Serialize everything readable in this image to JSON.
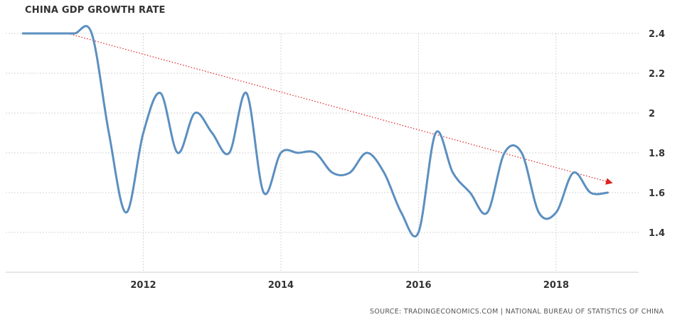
{
  "chart_data": {
    "type": "line",
    "title": "CHINA GDP GROWTH RATE",
    "source": "SOURCE: TRADINGECONOMICS.COM | NATIONAL BUREAU OF STATISTICS OF CHINA",
    "xlim": [
      2010.0,
      2019.2
    ],
    "ylim": [
      1.2,
      2.4
    ],
    "x_ticks": [
      2012,
      2014,
      2016,
      2018
    ],
    "y_ticks": [
      1.4,
      1.6,
      1.8,
      2,
      2.2,
      2.4
    ],
    "y_tick_labels": [
      "1.4",
      "1.6",
      "1.8",
      "2",
      "2.2",
      "2.4"
    ],
    "grid": true,
    "series": [
      {
        "color": "#5b8fc0",
        "x": [
          2010.25,
          2010.5,
          2010.75,
          2011.0,
          2011.25,
          2011.5,
          2011.75,
          2012.0,
          2012.25,
          2012.5,
          2012.75,
          2013.0,
          2013.25,
          2013.5,
          2013.75,
          2014.0,
          2014.25,
          2014.5,
          2014.75,
          2015.0,
          2015.25,
          2015.5,
          2015.75,
          2016.0,
          2016.25,
          2016.5,
          2016.75,
          2017.0,
          2017.25,
          2017.5,
          2017.75,
          2018.0,
          2018.25,
          2018.5,
          2018.75
        ],
        "values": [
          2.4,
          2.4,
          2.4,
          2.4,
          2.4,
          1.9,
          1.5,
          1.9,
          2.1,
          1.8,
          2.0,
          1.9,
          1.8,
          2.1,
          1.6,
          1.8,
          1.8,
          1.8,
          1.7,
          1.7,
          1.8,
          1.7,
          1.5,
          1.4,
          1.9,
          1.7,
          1.6,
          1.5,
          1.8,
          1.8,
          1.5,
          1.5,
          1.7,
          1.6,
          1.6
        ]
      }
    ],
    "trendline": {
      "color": "#e02020",
      "style": "dotted-arrow",
      "x": [
        2010.9,
        2018.8
      ],
      "y": [
        2.4,
        1.65
      ]
    }
  }
}
